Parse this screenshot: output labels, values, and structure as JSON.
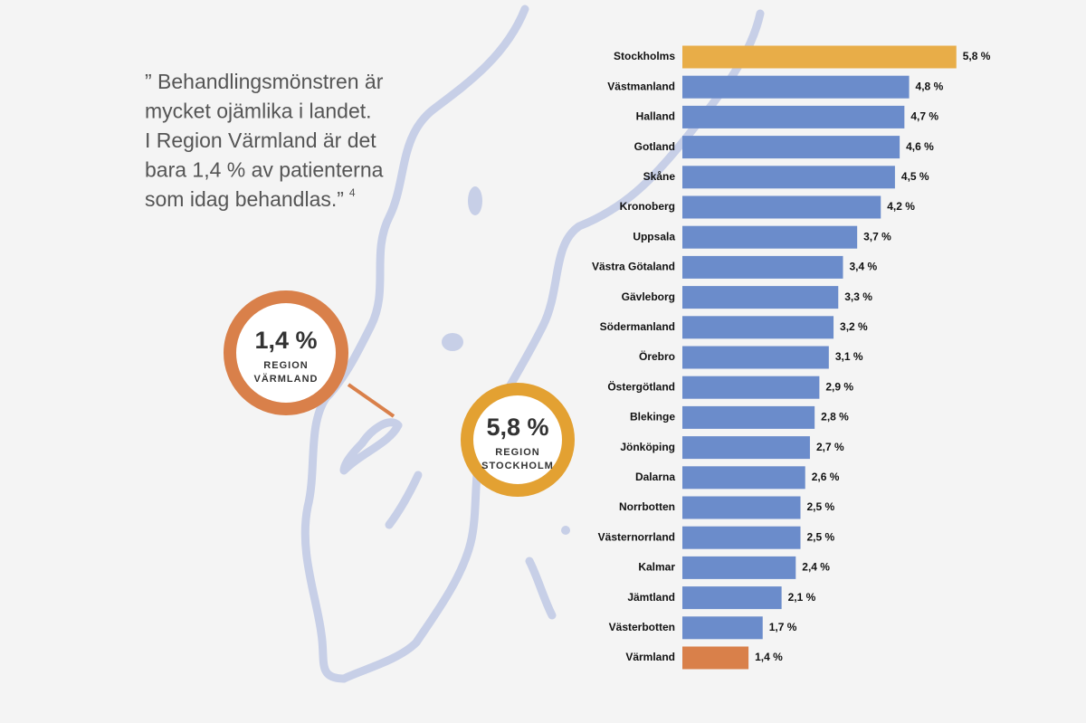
{
  "quote": {
    "lines": [
      "” Behandlingsmönstren är",
      "mycket ojämlika i landet.",
      "I Region Värmland är det",
      "bara 1,4 % av patienterna",
      "som idag behandlas.”"
    ],
    "footnote": "4"
  },
  "callouts": [
    {
      "value": "1,4 %",
      "label": [
        "REGION",
        "VÄRMLAND"
      ],
      "color": "#d9804a"
    },
    {
      "value": "5,8 %",
      "label": [
        "REGION",
        "STOCKHOLM"
      ],
      "color": "#e3a132"
    }
  ],
  "chart_data": {
    "type": "bar",
    "orientation": "horizontal",
    "categories": [
      "Stockholms",
      "Västmanland",
      "Halland",
      "Gotland",
      "Skåne",
      "Kronoberg",
      "Uppsala",
      "Västra Götaland",
      "Gävleborg",
      "Södermanland",
      "Örebro",
      "Östergötland",
      "Blekinge",
      "Jönköping",
      "Dalarna",
      "Norrbotten",
      "Västernorrland",
      "Kalmar",
      "Jämtland",
      "Västerbotten",
      "Värmland"
    ],
    "values": [
      5.8,
      4.8,
      4.7,
      4.6,
      4.5,
      4.2,
      3.7,
      3.4,
      3.3,
      3.2,
      3.1,
      2.9,
      2.8,
      2.7,
      2.6,
      2.5,
      2.5,
      2.4,
      2.1,
      1.7,
      1.4
    ],
    "value_labels": [
      "5,8 %",
      "4,8 %",
      "4,7 %",
      "4,6 %",
      "4,5 %",
      "4,2 %",
      "3,7 %",
      "3,4 %",
      "3,3 %",
      "3,2 %",
      "3,1 %",
      "2,9 %",
      "2,8 %",
      "2,7 %",
      "2,6 %",
      "2,5 %",
      "2,5 %",
      "2,4 %",
      "2,1 %",
      "1,7 %",
      "1,4 %"
    ],
    "colors": [
      "#e8ad48",
      "#6b8ccb",
      "#6b8ccb",
      "#6b8ccb",
      "#6b8ccb",
      "#6b8ccb",
      "#6b8ccb",
      "#6b8ccb",
      "#6b8ccb",
      "#6b8ccb",
      "#6b8ccb",
      "#6b8ccb",
      "#6b8ccb",
      "#6b8ccb",
      "#6b8ccb",
      "#6b8ccb",
      "#6b8ccb",
      "#6b8ccb",
      "#6b8ccb",
      "#6b8ccb",
      "#d9804a"
    ]
  }
}
